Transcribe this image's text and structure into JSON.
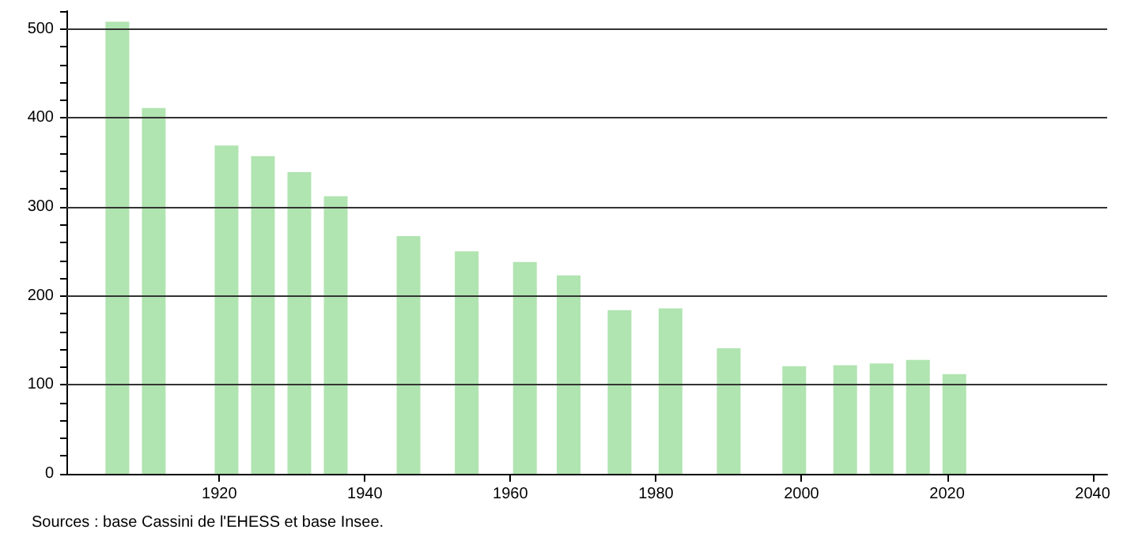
{
  "chart_data": {
    "type": "bar",
    "x": [
      1906,
      1911,
      1921,
      1926,
      1931,
      1936,
      1946,
      1954,
      1962,
      1968,
      1975,
      1982,
      1990,
      1999,
      2006,
      2011,
      2016,
      2021
    ],
    "values": [
      508,
      411,
      369,
      357,
      339,
      312,
      267,
      250,
      238,
      223,
      184,
      186,
      141,
      121,
      122,
      124,
      128,
      112
    ],
    "color": "#b0e4b0",
    "xlim": [
      1899,
      2042
    ],
    "xticks": [
      1920,
      1940,
      1960,
      1980,
      2000,
      2020,
      2040
    ],
    "ylim": [
      0,
      520
    ],
    "yticks": [
      0,
      {
        "value": 20,
        "label": null
      },
      {
        "value": 40,
        "label": null
      },
      {
        "value": 60,
        "label": null
      },
      {
        "value": 80,
        "label": null
      },
      100,
      {
        "value": 120,
        "label": null
      },
      {
        "value": 140,
        "label": null
      },
      {
        "value": 160,
        "label": null
      },
      {
        "value": 180,
        "label": null
      },
      200,
      {
        "value": 220,
        "label": null
      },
      {
        "value": 240,
        "label": null
      },
      {
        "value": 260,
        "label": null
      },
      {
        "value": 280,
        "label": null
      },
      300,
      {
        "value": 320,
        "label": null
      },
      {
        "value": 340,
        "label": null
      },
      {
        "value": 360,
        "label": null
      },
      {
        "value": 380,
        "label": null
      },
      400,
      {
        "value": 420,
        "label": null
      },
      {
        "value": 440,
        "label": null
      },
      {
        "value": 460,
        "label": null
      },
      {
        "value": 480,
        "label": null
      },
      500,
      {
        "value": 520,
        "label": null
      }
    ],
    "grid": "y",
    "annotations": [
      "Sources : base Cassini de l'EHESS et base Insee."
    ]
  }
}
